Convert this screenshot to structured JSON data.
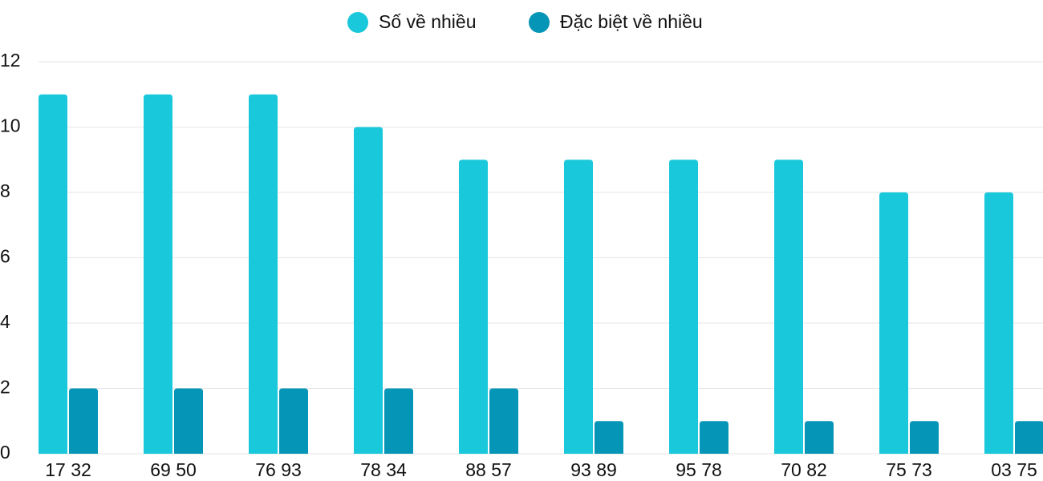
{
  "chart_data": {
    "type": "bar",
    "categories": [
      "17 32",
      "69 50",
      "76 93",
      "78 34",
      "88 57",
      "93 89",
      "95 78",
      "70 82",
      "75 73",
      "03 75"
    ],
    "series": [
      {
        "name": "Số về nhiều",
        "color": "#1ac8db",
        "values": [
          11,
          11,
          11,
          10,
          9,
          9,
          9,
          9,
          8,
          8
        ]
      },
      {
        "name": "Đặc biệt về nhiều",
        "color": "#0595b7",
        "values": [
          2,
          2,
          2,
          2,
          2,
          1,
          1,
          1,
          1,
          1
        ]
      }
    ],
    "ylim": [
      0,
      12
    ],
    "yticks": [
      0,
      2,
      4,
      6,
      8,
      10,
      12
    ],
    "grid": true
  }
}
